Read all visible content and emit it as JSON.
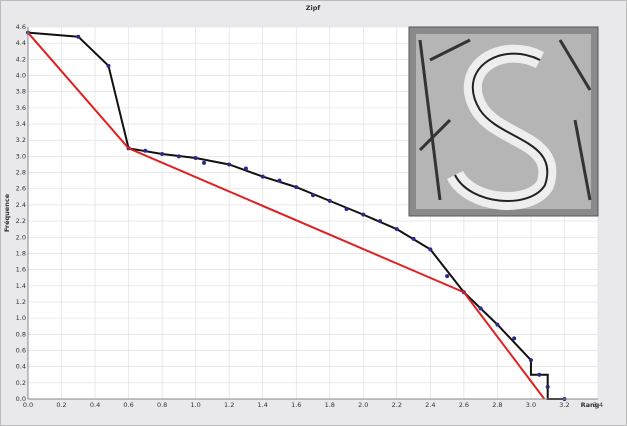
{
  "chart_data": {
    "type": "line",
    "title": "Zipf",
    "xlabel": "Rang",
    "ylabel": "Fréquence",
    "xlim": [
      0,
      3.4
    ],
    "ylim": [
      0,
      4.6
    ],
    "grid": true,
    "xticks": [
      {
        "value": 0,
        "label": "0.0"
      },
      0.2,
      0.4,
      0.6,
      0.8,
      {
        "value": 1,
        "label": "1.0"
      },
      1.2,
      1.4,
      1.6,
      1.8,
      {
        "value": 2,
        "label": "2.0"
      },
      2.2,
      2.4,
      2.6,
      2.8,
      {
        "value": 3,
        "label": "3.0"
      },
      3.2,
      3.4
    ],
    "yticks": [
      {
        "value": 0,
        "label": "0.0"
      },
      0.2,
      0.4,
      0.6,
      0.8,
      {
        "value": 1,
        "label": "1.0"
      },
      1.2,
      1.4,
      1.6,
      1.8,
      {
        "value": 2,
        "label": "2.0"
      },
      2.2,
      2.4,
      2.6,
      2.8,
      {
        "value": 3,
        "label": "3.0"
      },
      3.2,
      3.4,
      3.6,
      3.8,
      {
        "value": 4,
        "label": "4.0"
      },
      4.2,
      4.4,
      4.6
    ],
    "series": [
      {
        "type": "line",
        "color": "#111111",
        "x": [
          0,
          0.3,
          0.48,
          0.6,
          0.8,
          1.0,
          1.2,
          1.4,
          1.6,
          1.8,
          2.0,
          2.2,
          2.4,
          2.6,
          2.8,
          3.0,
          3.0,
          3.1,
          3.1,
          3.2
        ],
        "values": [
          4.53,
          4.48,
          4.12,
          3.1,
          3.03,
          2.98,
          2.9,
          2.75,
          2.62,
          2.45,
          2.28,
          2.1,
          1.85,
          1.32,
          0.92,
          0.48,
          0.3,
          0.3,
          0,
          0
        ]
      },
      {
        "type": "scatter",
        "color": "#2a2a8a",
        "x": [
          0,
          0.3,
          0.48,
          0.6,
          0.7,
          0.8,
          0.9,
          1.0,
          1.05,
          1.2,
          1.3,
          1.4,
          1.5,
          1.6,
          1.7,
          1.8,
          1.9,
          2.0,
          2.1,
          2.2,
          2.3,
          2.4,
          2.5,
          2.6,
          2.7,
          2.8,
          2.9,
          3.0,
          3.05,
          3.1,
          3.2
        ],
        "values": [
          4.53,
          4.48,
          4.12,
          3.1,
          3.07,
          3.03,
          3.0,
          2.98,
          2.92,
          2.9,
          2.85,
          2.75,
          2.7,
          2.62,
          2.52,
          2.45,
          2.35,
          2.28,
          2.2,
          2.1,
          1.98,
          1.85,
          1.52,
          1.32,
          1.12,
          0.92,
          0.75,
          0.48,
          0.3,
          0.15,
          0
        ]
      },
      {
        "type": "line",
        "color": "#e02020",
        "x": [
          0,
          0.6,
          2.6,
          3.08
        ],
        "values": [
          4.53,
          3.1,
          1.32,
          0
        ]
      }
    ]
  }
}
